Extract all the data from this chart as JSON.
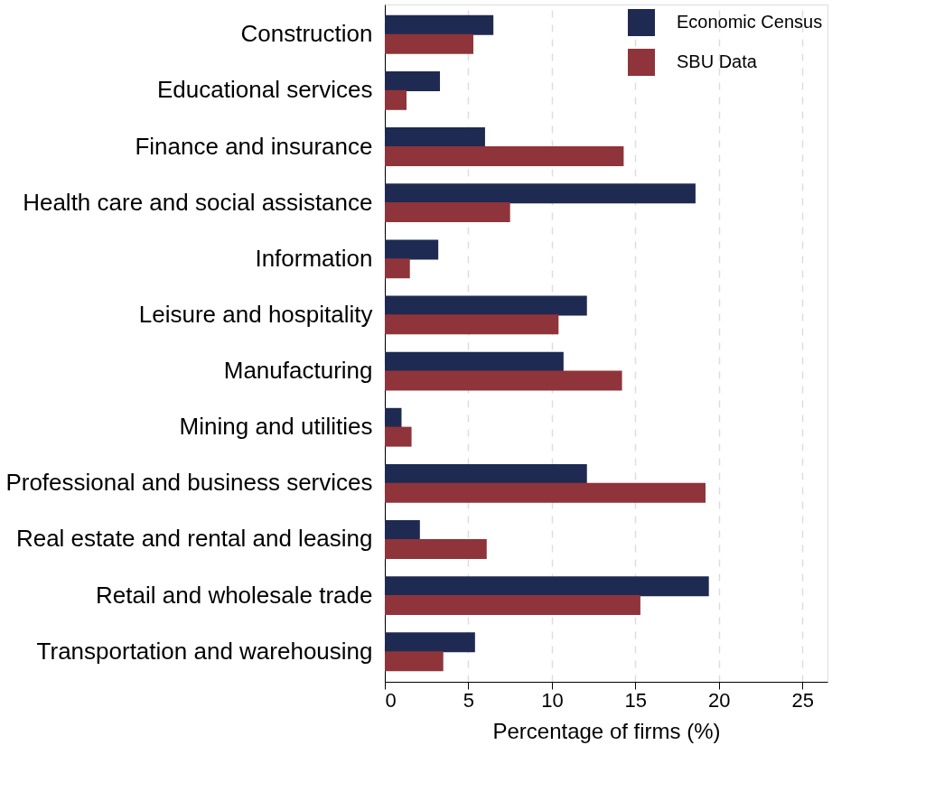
{
  "chart_data": {
    "type": "bar",
    "orientation": "horizontal",
    "xlabel": "Percentage of firms (%)",
    "categories": [
      "Construction",
      "Educational services",
      "Finance and insurance",
      "Health care and social assistance",
      "Information",
      "Leisure and hospitality",
      "Manufacturing",
      "Mining and utilities",
      "Professional and business services",
      "Real estate and rental and leasing",
      "Retail and wholesale trade",
      "Transportation and warehousing"
    ],
    "series": [
      {
        "name": "Economic Census",
        "color": "#1f2a52",
        "values": [
          6.5,
          3.3,
          6.0,
          18.6,
          3.2,
          12.1,
          10.7,
          1.0,
          12.1,
          2.1,
          19.4,
          5.4
        ]
      },
      {
        "name": "SBU Data",
        "color": "#8f343b",
        "values": [
          5.3,
          1.3,
          14.3,
          7.5,
          1.5,
          10.4,
          14.2,
          1.6,
          19.2,
          6.1,
          15.3,
          3.5
        ]
      }
    ],
    "xlim": [
      0,
      26.5
    ],
    "xticks": [
      0,
      5,
      10,
      15,
      20,
      25
    ],
    "grid": "x",
    "legend": "top right"
  }
}
